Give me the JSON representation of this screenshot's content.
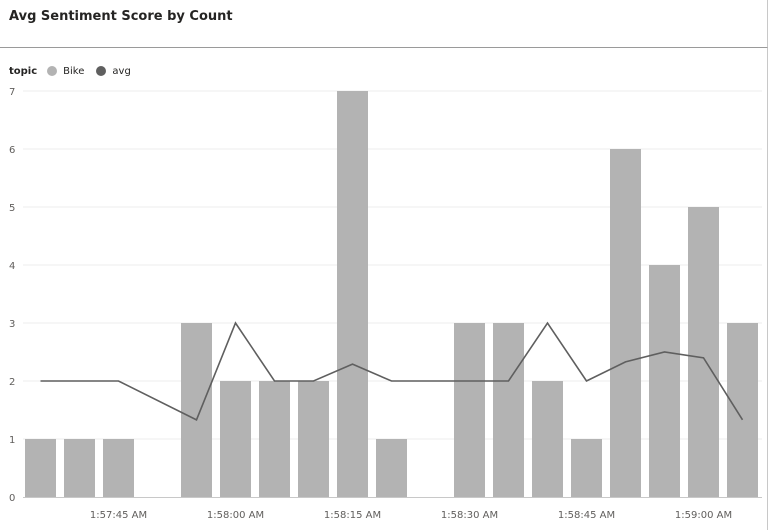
{
  "header": {
    "title": "Avg Sentiment Score by Count"
  },
  "legend": {
    "title": "topic",
    "items": [
      {
        "label": "Bike",
        "color": "#b3b3b3"
      },
      {
        "label": "avg",
        "color": "#5f5f5f"
      }
    ]
  },
  "chart_data": {
    "type": "bar",
    "title": "Avg Sentiment Score by Count",
    "legend_title": "topic",
    "legend_position": "top-left",
    "grid": true,
    "ylim": [
      0,
      7
    ],
    "yticks": [
      "0",
      "1",
      "2",
      "3",
      "4",
      "5",
      "6",
      "7"
    ],
    "xticks": [
      "1:57:45 AM",
      "1:58:00 AM",
      "1:58:15 AM",
      "1:58:30 AM",
      "1:58:45 AM",
      "1:59:00 AM"
    ],
    "x": [
      "1:57:35 AM",
      "1:57:40 AM",
      "1:57:45 AM",
      "1:57:50 AM",
      "1:57:55 AM",
      "1:58:00 AM",
      "1:58:05 AM",
      "1:58:10 AM",
      "1:58:15 AM",
      "1:58:20 AM",
      "1:58:25 AM",
      "1:58:30 AM",
      "1:58:35 AM",
      "1:58:40 AM",
      "1:58:45 AM",
      "1:58:50 AM",
      "1:58:55 AM",
      "1:59:00 AM",
      "1:59:05 AM"
    ],
    "series": [
      {
        "name": "Bike",
        "kind": "bar",
        "color": "#b3b3b3",
        "values": [
          1,
          1,
          1,
          null,
          3,
          2,
          2,
          2,
          7,
          1,
          null,
          3,
          3,
          2,
          1,
          6,
          4,
          5,
          3
        ]
      },
      {
        "name": "avg",
        "kind": "line",
        "color": "#5f5f5f",
        "values": [
          2,
          2,
          2,
          null,
          1.33,
          3,
          2,
          2,
          2.29,
          2,
          null,
          2,
          2,
          3,
          2,
          2.33,
          2.5,
          2.4,
          1.33
        ]
      }
    ]
  }
}
